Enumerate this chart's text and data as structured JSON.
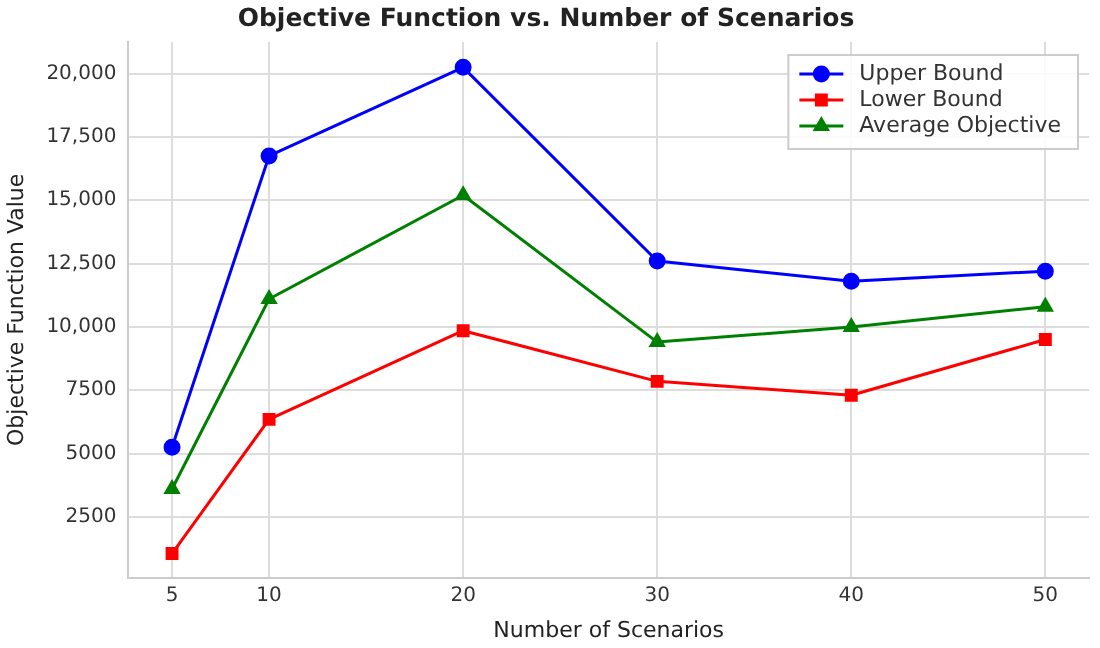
{
  "chart_data": {
    "type": "line",
    "title": "Objective Function vs. Number of Scenarios",
    "xlabel": "Number of Scenarios",
    "ylabel": "Objective Function Value",
    "x": [
      5,
      10,
      20,
      30,
      40,
      50
    ],
    "series": [
      {
        "name": "Upper Bound",
        "color": "#0000ff",
        "marker": "circle",
        "values": [
          5250,
          16750,
          20250,
          12600,
          11800,
          12200
        ]
      },
      {
        "name": "Lower Bound",
        "color": "#ff0000",
        "marker": "square",
        "values": [
          1050,
          6350,
          9850,
          7850,
          7300,
          9500
        ]
      },
      {
        "name": "Average Objective",
        "color": "#008000",
        "marker": "triangle",
        "values": [
          3600,
          11100,
          15200,
          9400,
          10000,
          10800
        ]
      }
    ],
    "xlim": [
      2.75,
      52.25
    ],
    "xticks": [
      5,
      10,
      20,
      30,
      40,
      50
    ],
    "ylim": [
      100,
      21250
    ],
    "yticks": [
      {
        "value": 2500,
        "label": "2500"
      },
      {
        "value": 5000,
        "label": "5000"
      },
      {
        "value": 7500,
        "label": "7500"
      },
      {
        "value": 10000,
        "label": "10,000"
      },
      {
        "value": 12500,
        "label": "12,500"
      },
      {
        "value": 15000,
        "label": "15,000"
      },
      {
        "value": 17500,
        "label": "17,500"
      },
      {
        "value": 20000,
        "label": "20,000"
      }
    ],
    "grid": true,
    "legend": "top right",
    "line_style": "solid"
  }
}
